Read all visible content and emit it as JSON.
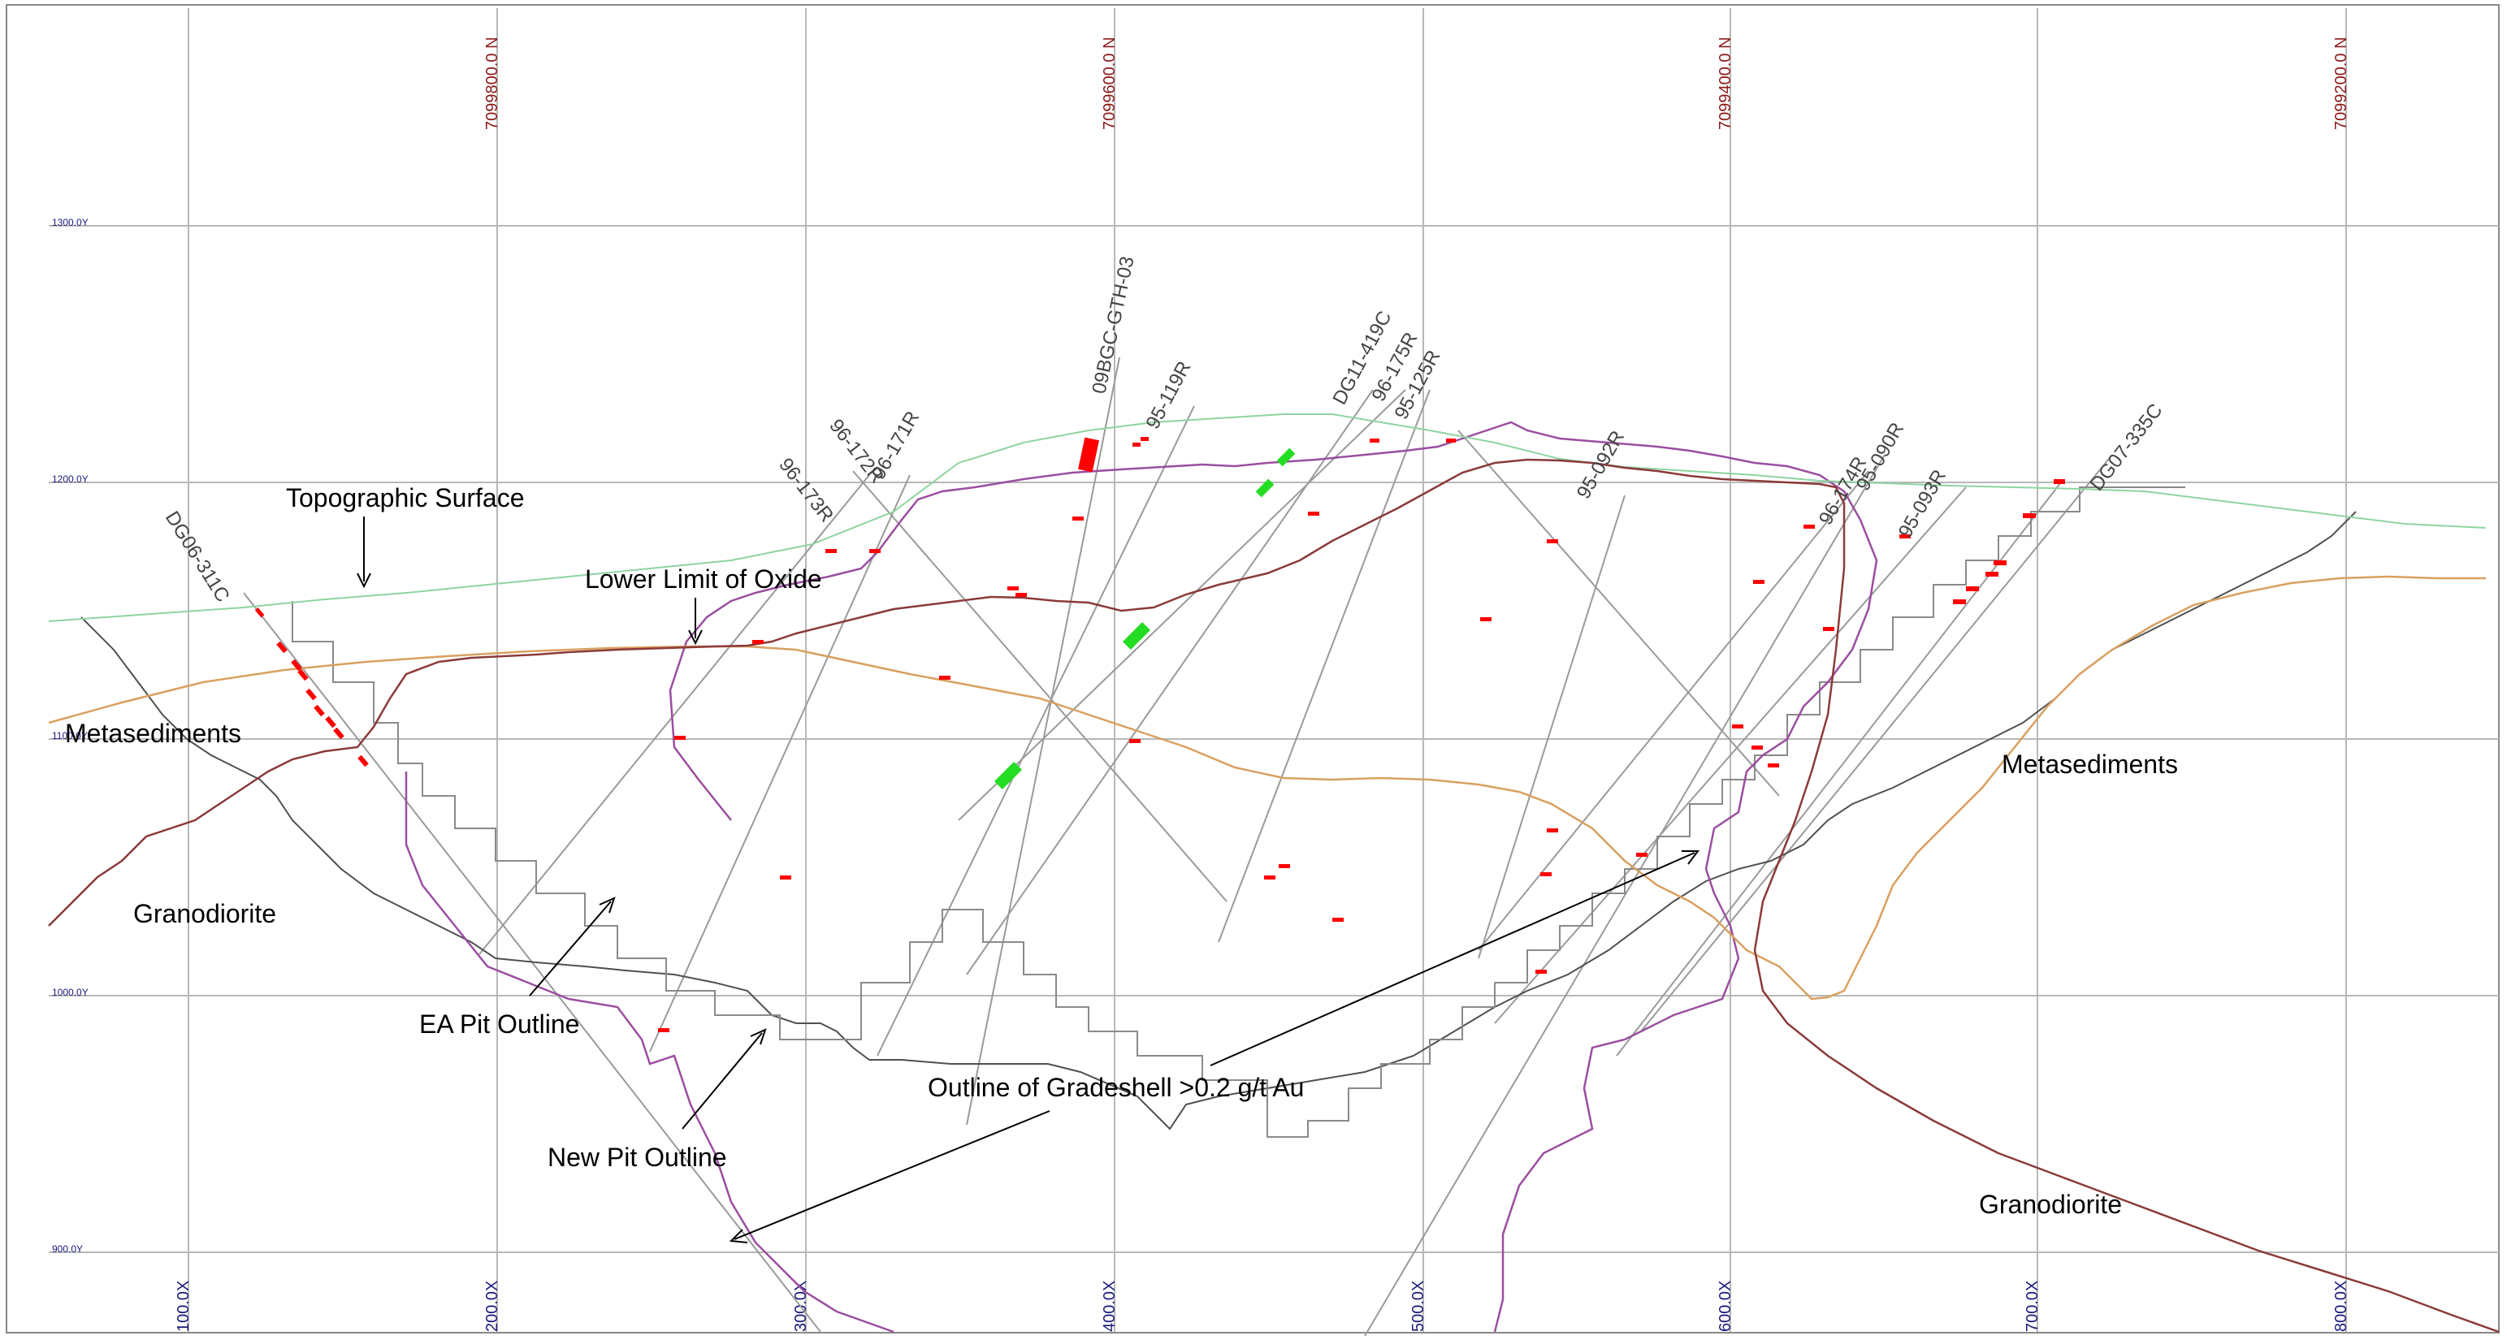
{
  "grid": {
    "northing_labels": [
      "7099800.0 N",
      "7099600.0 N",
      "7099400.0 N",
      "7099200.0 N"
    ],
    "elevation_labels": [
      "1300.0Y",
      "1200.0Y",
      "1100.0Y",
      "1000.0Y",
      "900.0Y"
    ],
    "easting_labels": [
      "100.0X",
      "200.0X",
      "300.0X",
      "400.0X",
      "500.0X",
      "600.0X",
      "700.0X",
      "800.0X"
    ]
  },
  "labels": {
    "topographic_surface": "Topographic Surface",
    "lower_limit_oxide": "Lower Limit of Oxide",
    "metasediments_left": "Metasediments",
    "metasediments_right": "Metasediments",
    "granodiorite_left": "Granodiorite",
    "granodiorite_right": "Granodiorite",
    "ea_pit_outline": "EA Pit Outline",
    "new_pit_outline": "New Pit Outline",
    "gradeshell": "Outline of Gradeshell >0.2 g/t Au"
  },
  "drillholes": [
    "DG06-311C",
    "96-173R",
    "96-172R",
    "96-171R",
    "09BGC-GTH-03",
    "95-119R",
    "DG11-419C",
    "96-175R",
    "95-125R",
    "95-092R",
    "96-174R",
    "95-090R",
    "95-093R",
    "DG07-335C"
  ],
  "colors": {
    "grid": "#b8b8b8",
    "topography": "#8ed4a0",
    "oxide_limit": "#8b3a3a",
    "gradeshell": "#9b4ea0",
    "contact": "#d9a060",
    "pit": "#606060",
    "assay_high": "#ff0000",
    "assay_green": "#22dd22",
    "northing_text": "#8b1a1a",
    "axis_text": "#1a1a7a"
  }
}
